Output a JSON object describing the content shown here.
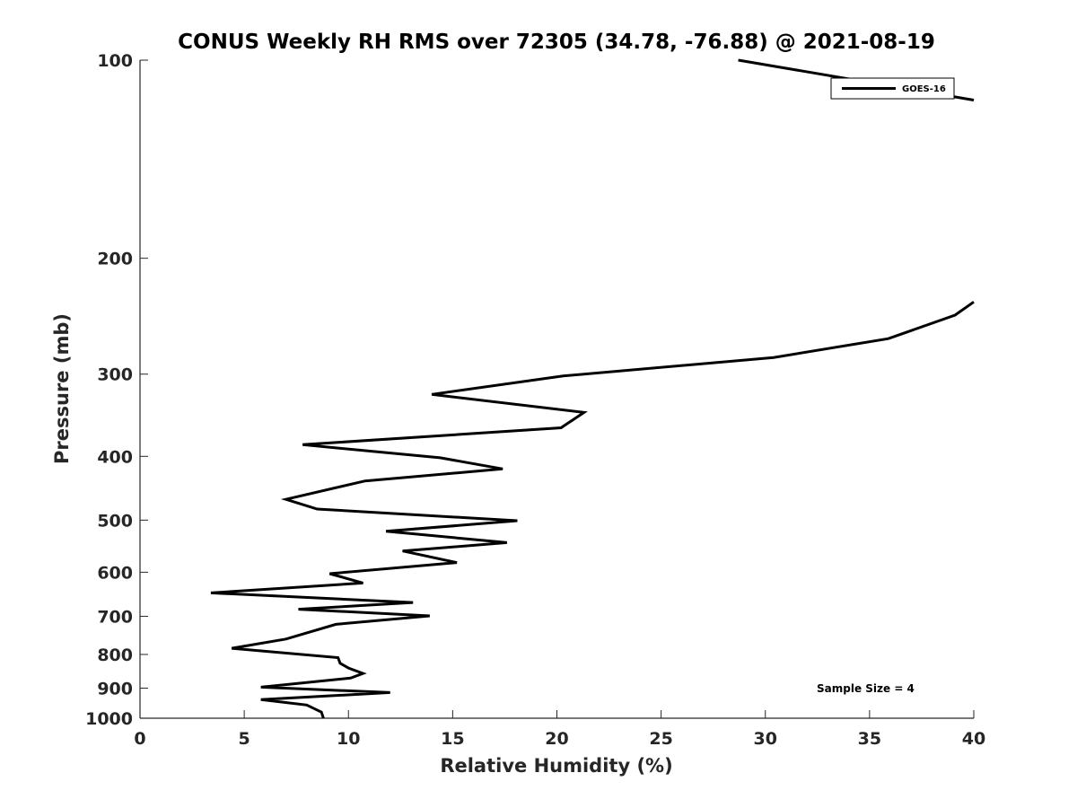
{
  "chart_data": {
    "type": "line",
    "title": "CONUS Weekly RH RMS over 72305 (34.78, -76.88) @ 2021-08-19",
    "xlabel": "Relative Humidity (%)",
    "ylabel": "Pressure (mb)",
    "xlim": [
      0,
      40
    ],
    "ylim": [
      100,
      1000
    ],
    "y_scale": "log",
    "y_reversed": true,
    "x_ticks": [
      "0",
      "5",
      "10",
      "15",
      "20",
      "25",
      "30",
      "35",
      "40"
    ],
    "y_ticks": [
      "100",
      "200",
      "300",
      "400",
      "500",
      "600",
      "700",
      "800",
      "900",
      "1000"
    ],
    "grid": false,
    "legend_position": "top-right",
    "annotation": "Sample Size = 4",
    "series": [
      {
        "name": "GOES-16",
        "color": "#000000",
        "segments": [
          [
            [
              28.7,
              100
            ],
            [
              40,
              115
            ]
          ],
          [
            [
              40,
              233
            ],
            [
              39.1,
              244
            ],
            [
              35.9,
              265
            ],
            [
              30.4,
              283
            ],
            [
              20.3,
              302
            ],
            [
              14.0,
              322
            ],
            [
              21.3,
              343
            ],
            [
              20.2,
              362
            ],
            [
              7.8,
              384
            ],
            [
              14.4,
              402
            ],
            [
              17.4,
              418
            ],
            [
              10.8,
              436
            ],
            [
              7.0,
              465
            ],
            [
              8.5,
              481
            ],
            [
              18.1,
              501
            ],
            [
              11.8,
              520
            ],
            [
              17.6,
              541
            ],
            [
              12.6,
              557
            ],
            [
              15.2,
              580
            ],
            [
              9.1,
              603
            ],
            [
              10.7,
              623
            ],
            [
              3.4,
              645
            ],
            [
              13.1,
              667
            ],
            [
              7.6,
              683
            ],
            [
              13.9,
              699
            ],
            [
              9.4,
              720
            ],
            [
              7.0,
              758
            ],
            [
              4.4,
              783
            ],
            [
              9.5,
              809
            ],
            [
              9.6,
              825
            ],
            [
              10.0,
              839
            ],
            [
              10.7,
              855
            ],
            [
              10.1,
              869
            ],
            [
              5.8,
              897
            ],
            [
              12.0,
              914
            ],
            [
              5.8,
              937
            ],
            [
              8.0,
              955
            ],
            [
              8.7,
              979
            ],
            [
              8.8,
              1000
            ]
          ]
        ]
      }
    ]
  }
}
